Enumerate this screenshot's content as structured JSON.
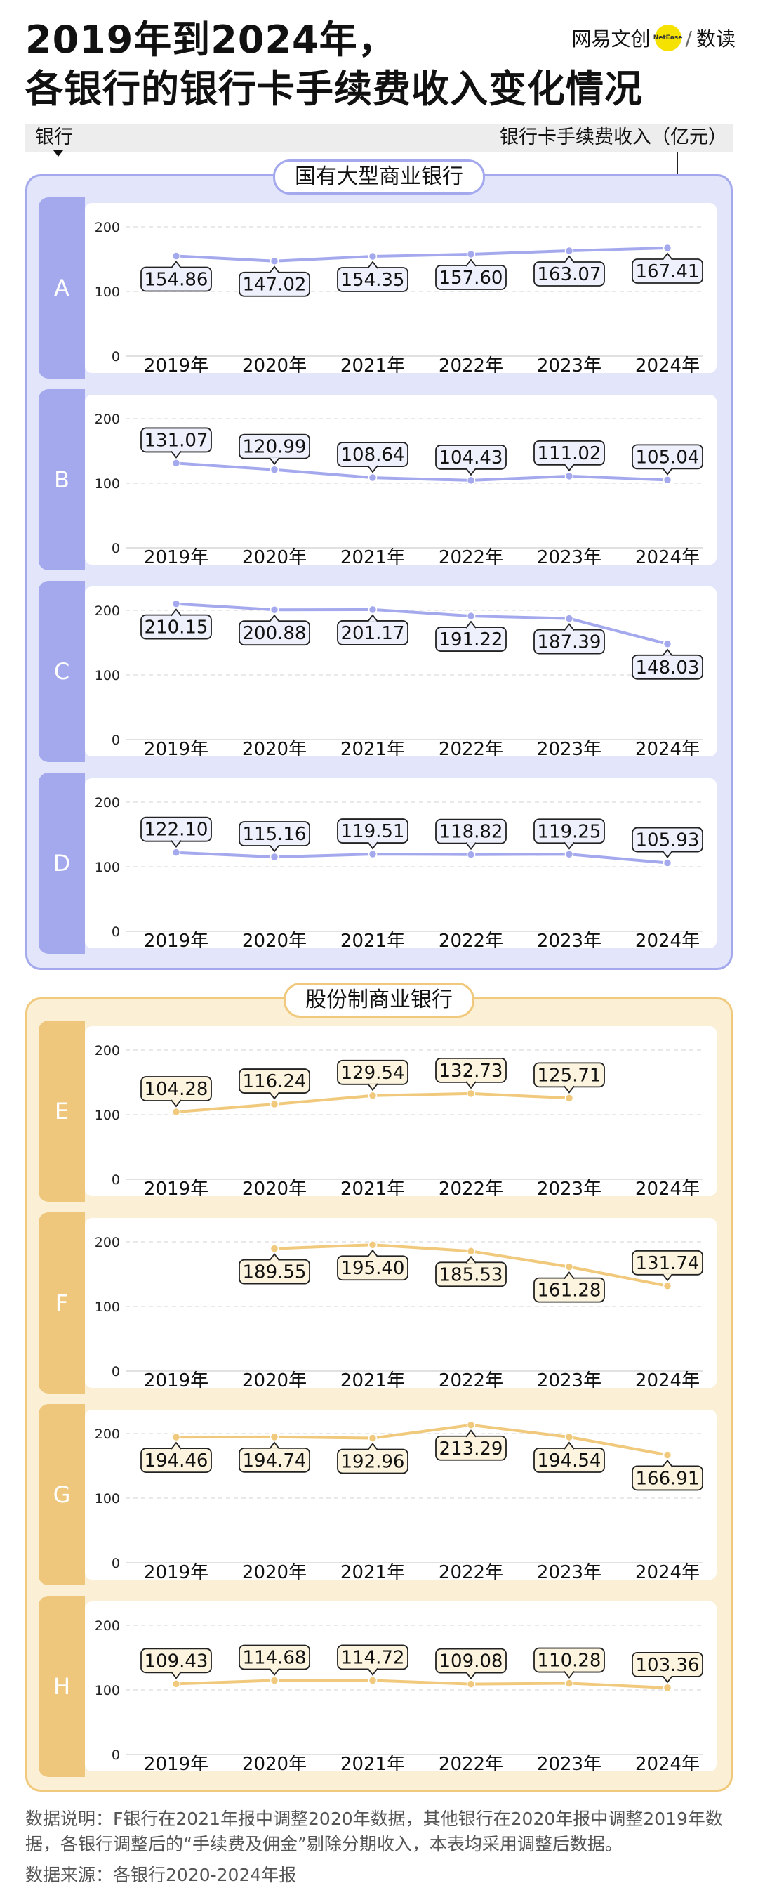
{
  "title": {
    "line1": "2019年到2024年，",
    "line2": "各银行的银行卡手续费收入变化情况"
  },
  "brand": {
    "name": "网易文创",
    "dot_text": "NetEase",
    "sub": "数读"
  },
  "columns": {
    "left": "银行",
    "right": "银行卡手续费收入（亿元）"
  },
  "groups": [
    {
      "label": "国有大型商业银行",
      "color": "#a4a9ee",
      "bg": "#e3e6fb",
      "panel_color": "#a4a9ee",
      "line_color": "#a4a9ee"
    },
    {
      "label": "股份制商业银行",
      "color": "#f0c97c",
      "bg": "#fbf0d6",
      "panel_color": "#eec77c",
      "line_color": "#f0c97c"
    }
  ],
  "chart_data": [
    {
      "type": "line",
      "bank": "A",
      "categories": [
        "2019年",
        "2020年",
        "2021年",
        "2022年",
        "2023年",
        "2024年"
      ],
      "values": [
        154.86,
        147.02,
        154.35,
        157.6,
        163.07,
        167.41
      ],
      "labels": [
        "154.86",
        "147.02",
        "154.35",
        "157.60",
        "163.07",
        "167.41"
      ],
      "yticks": [
        "0",
        "100",
        "200"
      ],
      "ylim": [
        0,
        200
      ]
    },
    {
      "type": "line",
      "bank": "B",
      "categories": [
        "2019年",
        "2020年",
        "2021年",
        "2022年",
        "2023年",
        "2024年"
      ],
      "values": [
        131.07,
        120.99,
        108.64,
        104.43,
        111.02,
        105.04
      ],
      "labels": [
        "131.07",
        "120.99",
        "108.64",
        "104.43",
        "111.02",
        "105.04"
      ],
      "yticks": [
        "0",
        "100",
        "200"
      ],
      "ylim": [
        0,
        200
      ]
    },
    {
      "type": "line",
      "bank": "C",
      "categories": [
        "2019年",
        "2020年",
        "2021年",
        "2022年",
        "2023年",
        "2024年"
      ],
      "values": [
        210.15,
        200.88,
        201.17,
        191.22,
        187.39,
        148.03
      ],
      "labels": [
        "210.15",
        "200.88",
        "201.17",
        "191.22",
        "187.39",
        "148.03"
      ],
      "yticks": [
        "0",
        "100",
        "200"
      ],
      "ylim": [
        0,
        200
      ]
    },
    {
      "type": "line",
      "bank": "D",
      "categories": [
        "2019年",
        "2020年",
        "2021年",
        "2022年",
        "2023年",
        "2024年"
      ],
      "values": [
        122.1,
        115.16,
        119.51,
        118.82,
        119.25,
        105.93
      ],
      "labels": [
        "122.10",
        "115.16",
        "119.51",
        "118.82",
        "119.25",
        "105.93"
      ],
      "yticks": [
        "0",
        "100",
        "200"
      ],
      "ylim": [
        0,
        200
      ]
    },
    {
      "type": "line",
      "bank": "E",
      "categories": [
        "2019年",
        "2020年",
        "2021年",
        "2022年",
        "2023年",
        "2024年"
      ],
      "values": [
        104.28,
        116.24,
        129.54,
        132.73,
        125.71,
        null
      ],
      "labels": [
        "104.28",
        "116.24",
        "129.54",
        "132.73",
        "125.71",
        ""
      ],
      "yticks": [
        "0",
        "100",
        "200"
      ],
      "ylim": [
        0,
        200
      ]
    },
    {
      "type": "line",
      "bank": "F",
      "categories": [
        "2019年",
        "2020年",
        "2021年",
        "2022年",
        "2023年",
        "2024年"
      ],
      "values": [
        null,
        189.55,
        195.4,
        185.53,
        161.28,
        131.74
      ],
      "labels": [
        "",
        "189.55",
        "195.40",
        "185.53",
        "161.28",
        "131.74"
      ],
      "yticks": [
        "0",
        "100",
        "200"
      ],
      "ylim": [
        0,
        200
      ]
    },
    {
      "type": "line",
      "bank": "G",
      "categories": [
        "2019年",
        "2020年",
        "2021年",
        "2022年",
        "2023年",
        "2024年"
      ],
      "values": [
        194.46,
        194.74,
        192.96,
        213.29,
        194.54,
        166.91
      ],
      "labels": [
        "194.46",
        "194.74",
        "192.96",
        "213.29",
        "194.54",
        "166.91"
      ],
      "yticks": [
        "0",
        "100",
        "200"
      ],
      "ylim": [
        0,
        200
      ]
    },
    {
      "type": "line",
      "bank": "H",
      "categories": [
        "2019年",
        "2020年",
        "2021年",
        "2022年",
        "2023年",
        "2024年"
      ],
      "values": [
        109.43,
        114.68,
        114.72,
        109.08,
        110.28,
        103.36
      ],
      "labels": [
        "109.43",
        "114.68",
        "114.72",
        "109.08",
        "110.28",
        "103.36"
      ],
      "yticks": [
        "0",
        "100",
        "200"
      ],
      "ylim": [
        0,
        200
      ]
    }
  ],
  "notes": {
    "explain": "数据说明：F银行在2021年报中调整2020年数据，其他银行在2020年报中调整2019年数据，各银行调整后的“手续费及佣金”剔除分期收入，本表均采用调整后数据。",
    "source": "数据来源：各银行2020-2024年报"
  }
}
